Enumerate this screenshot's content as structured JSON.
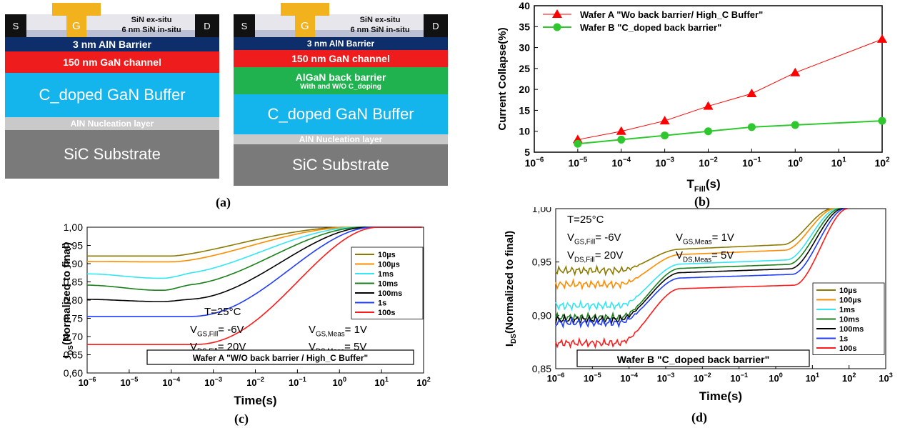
{
  "captions": {
    "a": "(a)",
    "b": "(b)",
    "c": "(c)",
    "d": "(d)"
  },
  "structures": [
    {
      "source": "S",
      "drain": "D",
      "gate": "G",
      "sin_ex": "SiN ex-situ",
      "sin_in": "6 nm SiN in-situ",
      "layers": [
        {
          "label": "3 nm AlN Barrier",
          "color": "#0d2d6b"
        },
        {
          "label": "150 nm GaN channel",
          "color": "#ee1c1c"
        },
        {
          "label": "C_doped GaN Buffer",
          "color": "#14b4ec"
        },
        {
          "label": "AlN Nucleation layer",
          "color": "#c9c9c9"
        },
        {
          "label": "SiC Substrate",
          "color": "#7a7a7a"
        }
      ]
    },
    {
      "source": "S",
      "drain": "D",
      "gate": "G",
      "sin_ex": "SiN ex-situ",
      "sin_in": "6 nm SiN in-situ",
      "layers": [
        {
          "label": "3 nm AlN Barrier",
          "color": "#0d2d6b"
        },
        {
          "label": "150 nm GaN channel",
          "color": "#ee1c1c"
        },
        {
          "label": "AlGaN back barrier",
          "sublabel": "With and W/O C_doping",
          "color": "#1fb24e"
        },
        {
          "label": "C_doped GaN Buffer",
          "color": "#14b4ec"
        },
        {
          "label": "AlN Nucleation layer",
          "color": "#c9c9c9"
        },
        {
          "label": "SiC Substrate",
          "color": "#7a7a7a"
        }
      ]
    }
  ],
  "chart_data": [
    {
      "id": "b",
      "type": "line",
      "ylabel": "Current Collapse(%)",
      "xlabel": "T_Fill(s)",
      "xscale": "log",
      "xlim": [
        -6,
        2
      ],
      "ylim": [
        5,
        40
      ],
      "yticks": [
        "5",
        "10",
        "15",
        "20",
        "25",
        "30",
        "35",
        "40"
      ],
      "legend_position": "top-left",
      "series": [
        {
          "name": "Wafer A \"Wo back barrier/ High_C Buffer\"",
          "color": "#ff0000",
          "marker": "triangle",
          "x": [
            1e-05,
            0.0001,
            0.001,
            0.01,
            0.1,
            1,
            100
          ],
          "y": [
            8,
            10,
            12.5,
            16,
            19,
            24,
            32
          ]
        },
        {
          "name": "Wafer B \"C_doped back barrier\"",
          "color": "#2ec82e",
          "marker": "circle",
          "x": [
            1e-05,
            0.0001,
            0.001,
            0.01,
            0.1,
            1,
            100
          ],
          "y": [
            7,
            8,
            9,
            10,
            11,
            11.5,
            12.5
          ]
        }
      ]
    },
    {
      "id": "c",
      "type": "line",
      "ylabel": "I_DS(Normalized to final)",
      "xlabel": "Time(s)",
      "xscale": "log",
      "xlim": [
        -6,
        2
      ],
      "ylim": [
        0.6,
        1.0
      ],
      "yticks": [
        "0,60",
        "0,65",
        "0,70",
        "0,75",
        "0,80",
        "0,85",
        "0,90",
        "0,95",
        "1,00"
      ],
      "legend_position": "right",
      "annotation": {
        "temp": "T=25°C",
        "vgs_fill": "V_GS,Fill= -6V",
        "vds_fill": "V_DS,Fill= 20V",
        "vgs_meas": "V_GS,Meas= 1V",
        "vds_meas": "V_DS,Meas= 5V"
      },
      "boxlabel": "Wafer A \"W/O back barrier / High_C Buffer\"",
      "series": [
        {
          "name": "10µs",
          "color": "#8b7a00",
          "start": 0.921,
          "dip": 0.921
        },
        {
          "name": "100µs",
          "color": "#ff8c00",
          "start": 0.906,
          "dip": 0.905
        },
        {
          "name": "1ms",
          "color": "#33e6f2",
          "start": 0.872,
          "dip": 0.86
        },
        {
          "name": "10ms",
          "color": "#1a7f1a",
          "start": 0.841,
          "dip": 0.827
        },
        {
          "name": "100ms",
          "color": "#000000",
          "start": 0.802,
          "dip": 0.796
        },
        {
          "name": "1s",
          "color": "#1f3cff",
          "start": 0.755,
          "dip": 0.755
        },
        {
          "name": "100s",
          "color": "#ff1a1a",
          "start": 0.678,
          "dip": 0.678
        }
      ]
    },
    {
      "id": "d",
      "type": "line",
      "ylabel": "I_DS(Normalized to final)",
      "xlabel": "Time(s)",
      "xscale": "log",
      "xlim": [
        -6,
        3
      ],
      "ylim": [
        0.85,
        1.0
      ],
      "yticks": [
        "0,85",
        "0,90",
        "0,95",
        "1,00"
      ],
      "legend_position": "bottom-right",
      "annotation": {
        "temp": "T=25°C",
        "vgs_fill": "V_GS,Fill= -6V",
        "vds_fill": "V_DS,Fill= 20V",
        "vgs_meas": "V_GS,Meas= 1V",
        "vds_meas": "V_DS,Meas= 5V"
      },
      "boxlabel": "Wafer B \"C_doped back barrier\"",
      "series": [
        {
          "name": "10µs",
          "color": "#8b7a00",
          "start": 0.942,
          "plateau": 0.962
        },
        {
          "name": "100µs",
          "color": "#ff8c00",
          "start": 0.929,
          "plateau": 0.957
        },
        {
          "name": "1ms",
          "color": "#33e6f2",
          "start": 0.909,
          "plateau": 0.948
        },
        {
          "name": "10ms",
          "color": "#1a7f1a",
          "start": 0.898,
          "plateau": 0.944
        },
        {
          "name": "100ms",
          "color": "#000000",
          "start": 0.896,
          "plateau": 0.94
        },
        {
          "name": "1s",
          "color": "#1f3cff",
          "start": 0.893,
          "plateau": 0.935
        },
        {
          "name": "100s",
          "color": "#ff1a1a",
          "start": 0.874,
          "plateau": 0.925
        }
      ]
    }
  ]
}
